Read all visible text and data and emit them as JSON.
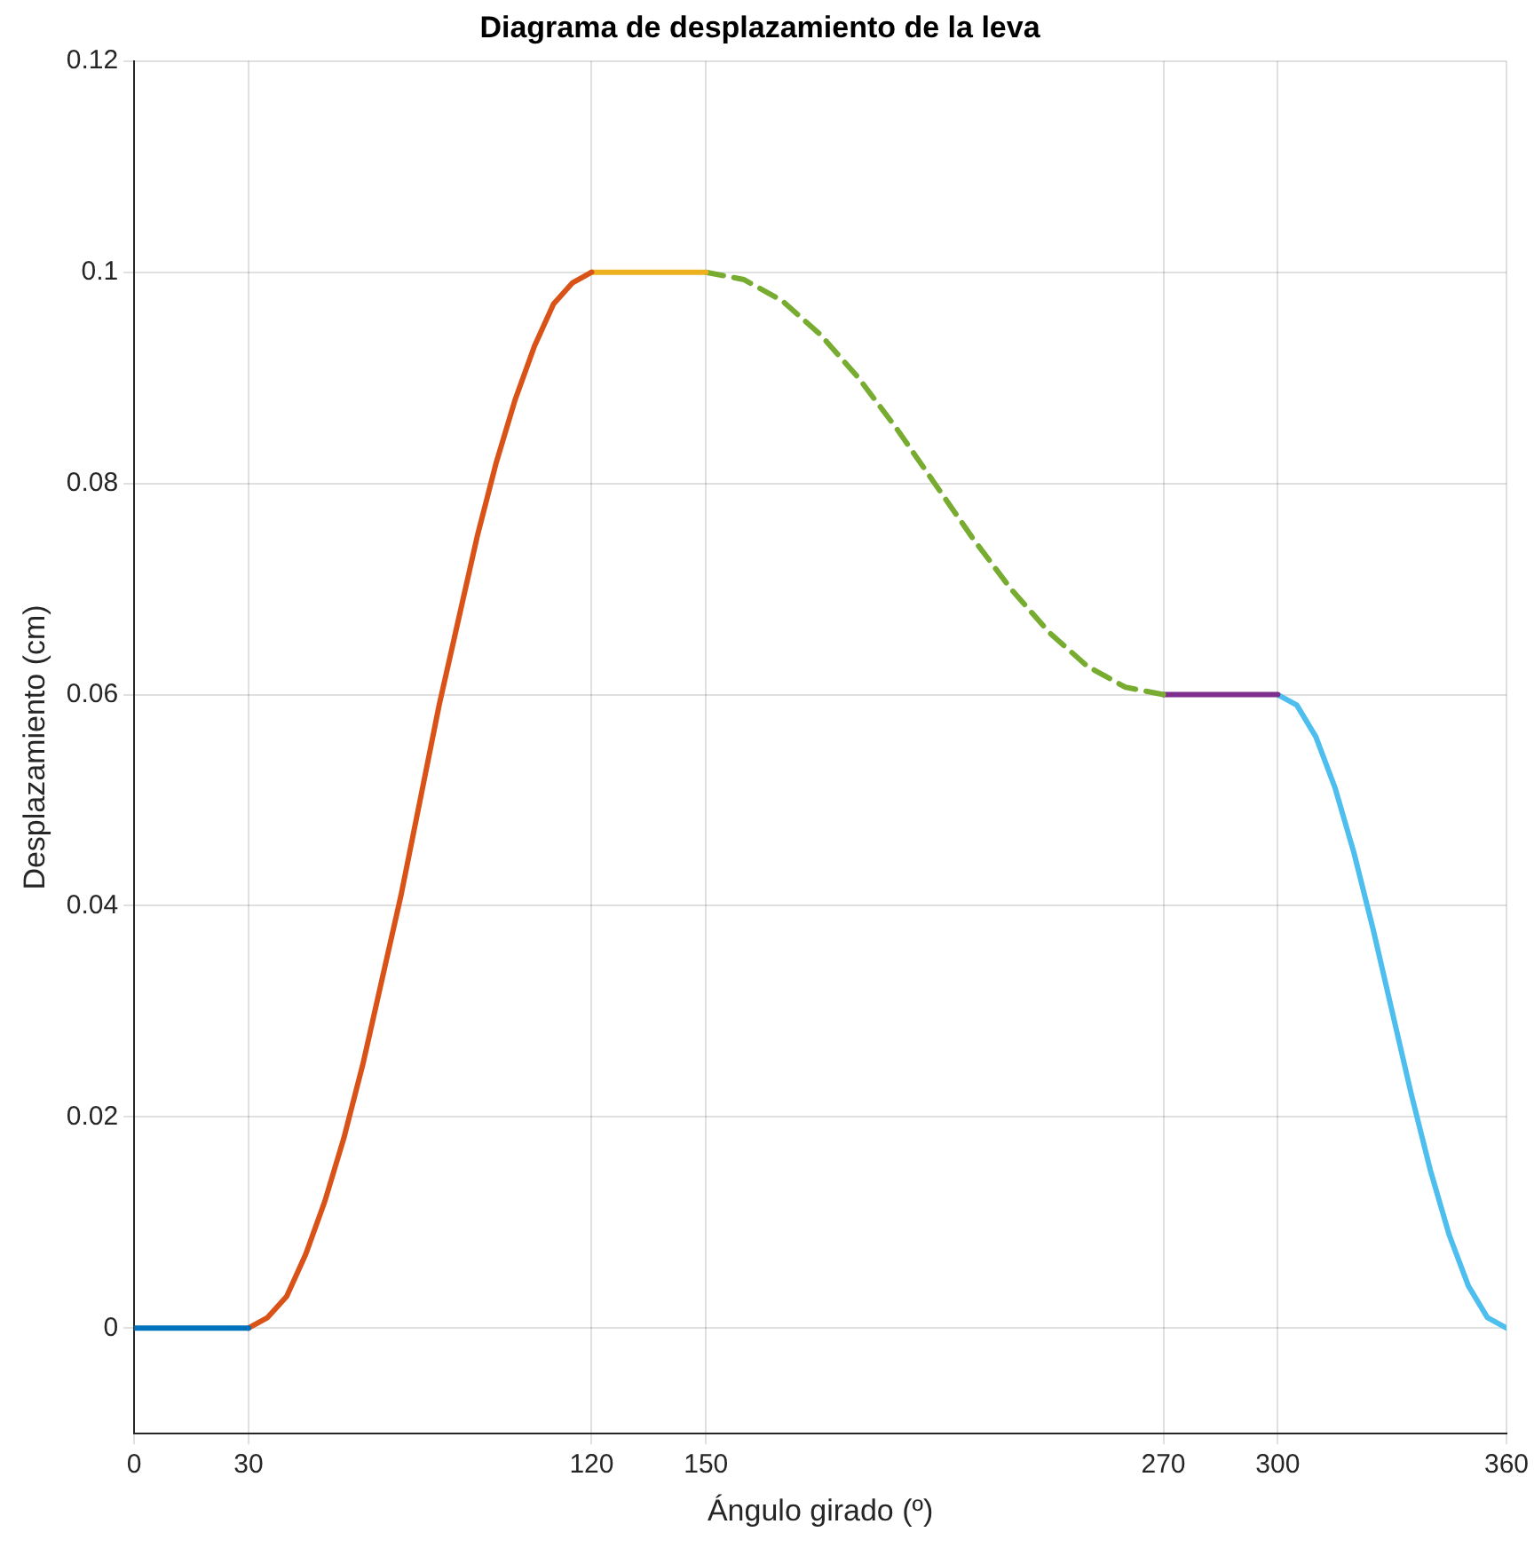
{
  "chart_data": {
    "type": "line",
    "title": "Diagrama de desplazamiento de la leva",
    "xlabel": "Ángulo girado (º)",
    "ylabel": "Desplazamiento (cm)",
    "xlim": [
      0,
      360
    ],
    "xticks": [
      0,
      30,
      120,
      150,
      270,
      300,
      360
    ],
    "ylim": [
      -0.01,
      0.12
    ],
    "yticks": [
      0,
      0.02,
      0.04,
      0.06,
      0.08,
      0.1,
      0.12
    ],
    "grid": true,
    "legend": false,
    "marker": "none",
    "series": [
      {
        "color": "#0072bd",
        "x": [
          0,
          30
        ],
        "values": [
          0,
          0
        ]
      },
      {
        "color": "#d95319",
        "x": [
          30,
          35,
          40,
          45,
          50,
          55,
          60,
          65,
          70,
          75,
          80,
          85,
          90,
          95,
          100,
          105,
          110,
          115,
          120
        ],
        "values": [
          0,
          0.001,
          0.003,
          0.007,
          0.012,
          0.018,
          0.025,
          0.033,
          0.041,
          0.05,
          0.059,
          0.067,
          0.075,
          0.082,
          0.088,
          0.093,
          0.097,
          0.099,
          0.1
        ]
      },
      {
        "color": "#edb120",
        "x": [
          120,
          150
        ],
        "values": [
          0.1,
          0.1
        ]
      },
      {
        "color": "#77ac30",
        "line_style": "dashed",
        "x": [
          150,
          160,
          170,
          180,
          190,
          200,
          210,
          220,
          230,
          240,
          250,
          260,
          270
        ],
        "values": [
          0.1,
          0.0993,
          0.0973,
          0.0941,
          0.09,
          0.0852,
          0.08,
          0.0748,
          0.07,
          0.0659,
          0.0627,
          0.0607,
          0.06
        ]
      },
      {
        "color": "#7e2f8e",
        "x": [
          270,
          300
        ],
        "values": [
          0.06,
          0.06
        ]
      },
      {
        "color": "#4dbeee",
        "x": [
          300,
          305,
          310,
          315,
          320,
          325,
          330,
          335,
          340,
          345,
          350,
          355,
          360
        ],
        "values": [
          0.06,
          0.059,
          0.056,
          0.0512,
          0.045,
          0.0378,
          0.03,
          0.0222,
          0.015,
          0.0088,
          0.004,
          0.001,
          0
        ]
      }
    ]
  }
}
